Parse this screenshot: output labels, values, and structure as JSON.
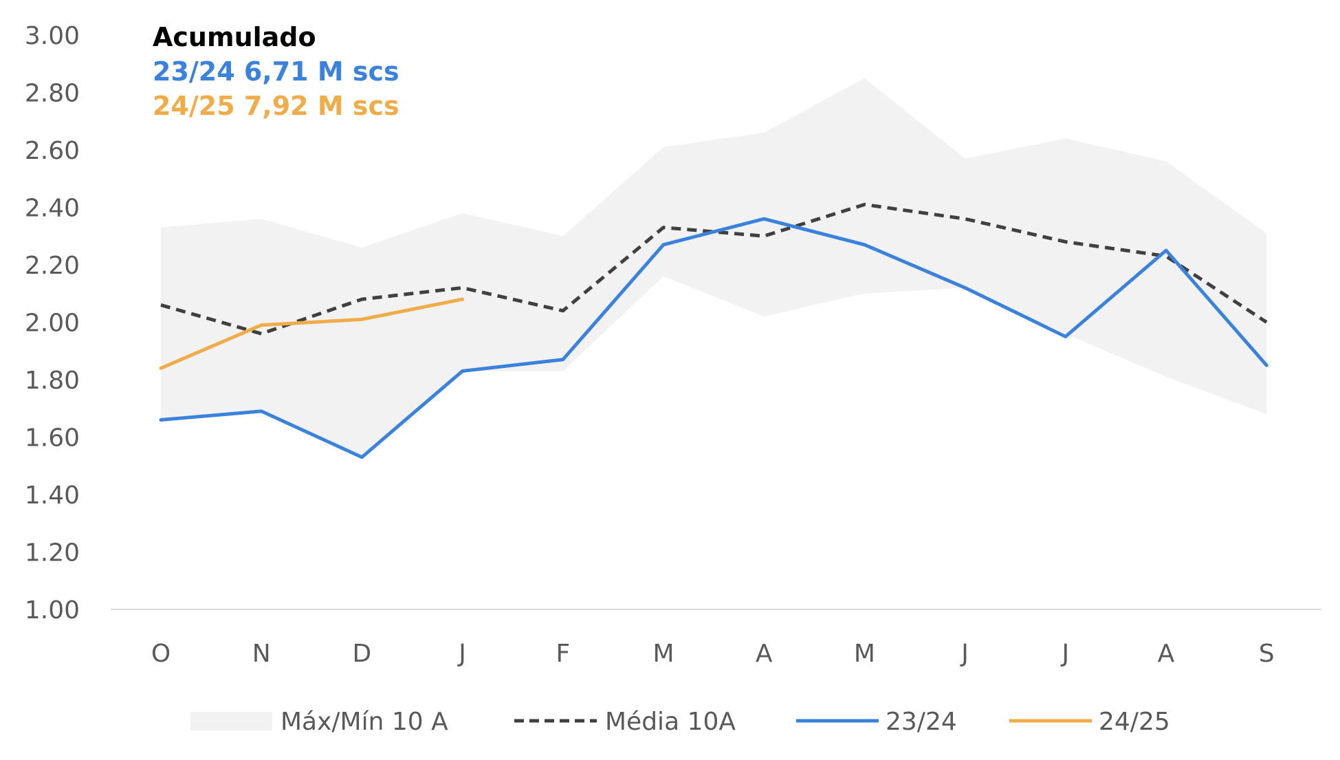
{
  "chart_data": {
    "type": "line",
    "categories": [
      "O",
      "N",
      "D",
      "J",
      "F",
      "M",
      "A",
      "M",
      "J",
      "J",
      "A",
      "S"
    ],
    "ylim": [
      1.0,
      3.0
    ],
    "yticks": [
      1.0,
      1.2,
      1.4,
      1.6,
      1.8,
      2.0,
      2.2,
      2.4,
      2.6,
      2.8,
      3.0
    ],
    "ytick_labels": [
      "1.00",
      "1.20",
      "1.40",
      "1.60",
      "1.80",
      "2.00",
      "2.20",
      "2.40",
      "2.60",
      "2.80",
      "3.00"
    ],
    "grid": false,
    "legend_position": "bottom",
    "band": {
      "name": "Máx/Mín 10 A",
      "max": [
        2.33,
        2.36,
        2.26,
        2.38,
        2.3,
        2.61,
        2.66,
        2.85,
        2.57,
        2.64,
        2.56,
        2.31
      ],
      "min": [
        1.66,
        1.69,
        1.53,
        1.83,
        1.83,
        2.16,
        2.02,
        2.1,
        2.12,
        1.96,
        1.81,
        1.68
      ],
      "color": "#f2f2f2"
    },
    "series": [
      {
        "name": "Média 10A",
        "values": [
          2.06,
          1.96,
          2.08,
          2.12,
          2.04,
          2.33,
          2.3,
          2.41,
          2.36,
          2.28,
          2.23,
          2.0
        ],
        "color": "#404040",
        "style": "dashed"
      },
      {
        "name": "23/24",
        "values": [
          1.66,
          1.69,
          1.53,
          1.83,
          1.87,
          2.27,
          2.36,
          2.27,
          2.12,
          1.95,
          2.25,
          1.85
        ],
        "color": "#3a82dc",
        "style": "solid"
      },
      {
        "name": "24/25",
        "values": [
          1.84,
          1.99,
          2.01,
          2.08,
          null,
          null,
          null,
          null,
          null,
          null,
          null,
          null
        ],
        "color": "#f0ac48",
        "style": "solid"
      }
    ],
    "annotations": [
      {
        "text": "Acumulado",
        "color": "#000000"
      },
      {
        "text": "23/24 6,71 M scs",
        "color": "#3a82dc"
      },
      {
        "text": "24/25 7,92 M scs",
        "color": "#f0ac48"
      }
    ]
  }
}
